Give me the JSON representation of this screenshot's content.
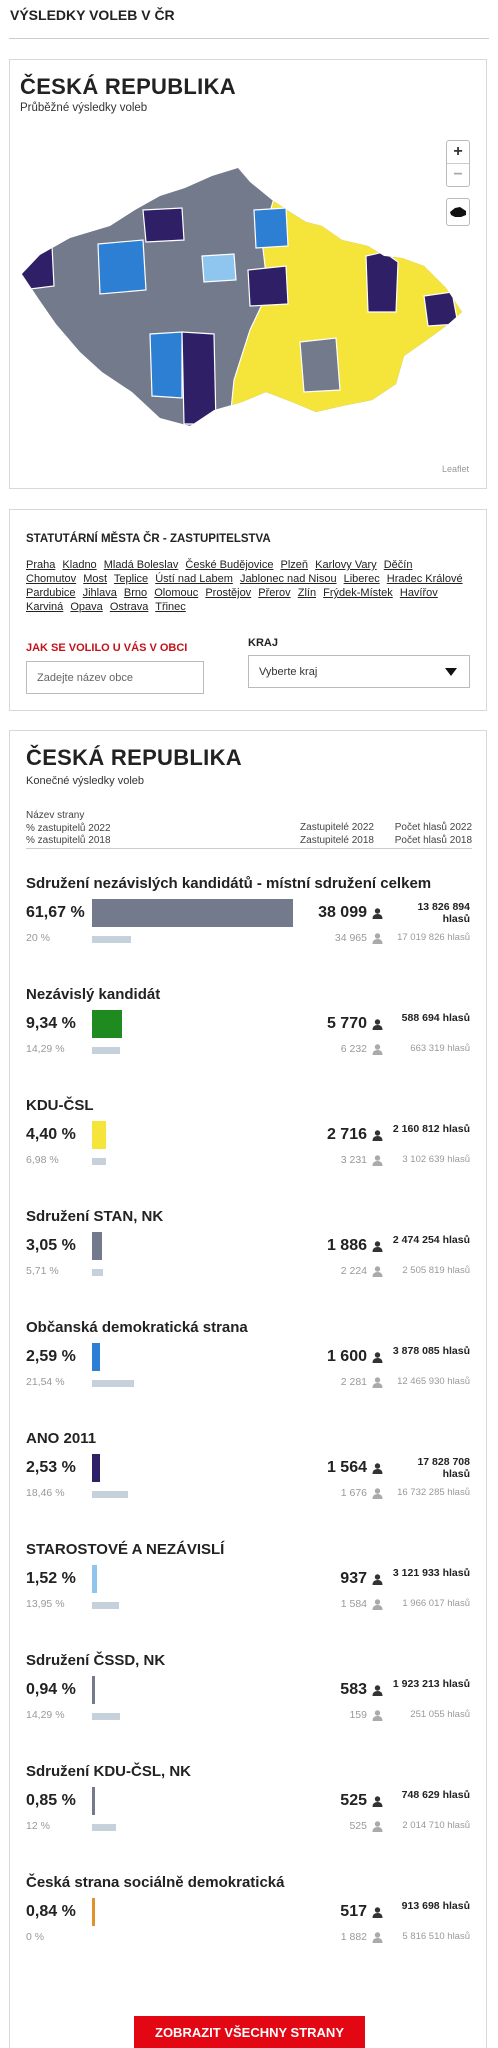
{
  "header": {
    "title": "VÝSLEDKY VOLEB V ČR"
  },
  "map_panel": {
    "title": "ČESKÁ REPUBLIKA",
    "subtitle": "Průběžné výsledky voleb",
    "zoom_in": "+",
    "zoom_out": "−",
    "attribution": "Leaflet"
  },
  "cities": {
    "title": "STATUTÁRNÍ MĚSTA ČR - ZASTUPITELSTVA",
    "links": [
      "Praha",
      "Kladno",
      "Mladá Boleslav",
      "České Budějovice",
      "Plzeň",
      "Karlovy Vary",
      "Děčín",
      "Chomutov",
      "Most",
      "Teplice",
      "Ústí nad Labem",
      "Jablonec nad Nisou",
      "Liberec",
      "Hradec Králové",
      "Pardubice",
      "Jihlava",
      "Brno",
      "Olomouc",
      "Prostějov",
      "Přerov",
      "Zlín",
      "Frýdek-Místek",
      "Havířov",
      "Karviná",
      "Opava",
      "Ostrava",
      "Třinec"
    ]
  },
  "search": {
    "label": "JAK SE VOLILO U VÁS V OBCI",
    "placeholder": "Zadejte název obce"
  },
  "region": {
    "label": "KRAJ",
    "placeholder": "Vyberte kraj"
  },
  "results": {
    "title": "ČESKÁ REPUBLIKA",
    "subtitle": "Konečné výsledky voleb",
    "columns": {
      "name": "Název strany",
      "pct_2022": "% zastupitelů 2022",
      "pct_2018": "% zastupitelů 2018",
      "seats_2022": "Zastupitelé 2022",
      "seats_2018": "Zastupitelé 2018",
      "votes_2022": "Počet hlasů 2022",
      "votes_2018": "Počet hlasů 2018"
    },
    "votes_unit": "hlasů",
    "parties": [
      {
        "name": "Sdružení nezávislých kandidátů - místní sdružení celkem",
        "color": "#737a8c",
        "pct_2022": {
          "value": 61.67,
          "label": "61,67 %"
        },
        "seats_2022": "38 099",
        "votes_2022": "13 826 894",
        "pct_2018": {
          "value": 20,
          "label": "20 %"
        },
        "seats_2018": "34 965",
        "votes_2018": "17 019 826"
      },
      {
        "name": "Nezávislý kandidát",
        "color": "#1f8a1f",
        "pct_2022": {
          "value": 9.34,
          "label": "9,34 %"
        },
        "seats_2022": "5 770",
        "votes_2022": "588 694",
        "pct_2018": {
          "value": 14.29,
          "label": "14,29 %"
        },
        "seats_2018": "6 232",
        "votes_2018": "663 319"
      },
      {
        "name": "KDU-ČSL",
        "color": "#f5e43a",
        "pct_2022": {
          "value": 4.4,
          "label": "4,40 %"
        },
        "seats_2022": "2 716",
        "votes_2022": "2 160 812",
        "pct_2018": {
          "value": 6.98,
          "label": "6,98 %"
        },
        "seats_2018": "3 231",
        "votes_2018": "3 102 639"
      },
      {
        "name": "Sdružení STAN, NK",
        "color": "#737a8c",
        "pct_2022": {
          "value": 3.05,
          "label": "3,05 %"
        },
        "seats_2022": "1 886",
        "votes_2022": "2 474 254",
        "pct_2018": {
          "value": 5.71,
          "label": "5,71 %"
        },
        "seats_2018": "2 224",
        "votes_2018": "2 505 819"
      },
      {
        "name": "Občanská demokratická strana",
        "color": "#2d7fd3",
        "pct_2022": {
          "value": 2.59,
          "label": "2,59 %"
        },
        "seats_2022": "1 600",
        "votes_2022": "3 878 085",
        "pct_2018": {
          "value": 21.54,
          "label": "21,54 %"
        },
        "seats_2018": "2 281",
        "votes_2018": "12 465 930"
      },
      {
        "name": "ANO 2011",
        "color": "#2e1f66",
        "pct_2022": {
          "value": 2.53,
          "label": "2,53 %"
        },
        "seats_2022": "1 564",
        "votes_2022": "17 828 708",
        "pct_2018": {
          "value": 18.46,
          "label": "18,46 %"
        },
        "seats_2018": "1 676",
        "votes_2018": "16 732 285"
      },
      {
        "name": "STAROSTOVÉ A NEZÁVISLÍ",
        "color": "#8ec6f0",
        "pct_2022": {
          "value": 1.52,
          "label": "1,52 %"
        },
        "seats_2022": "937",
        "votes_2022": "3 121 933",
        "pct_2018": {
          "value": 13.95,
          "label": "13,95 %"
        },
        "seats_2018": "1 584",
        "votes_2018": "1 966 017"
      },
      {
        "name": "Sdružení ČSSD, NK",
        "color": "#737a8c",
        "pct_2022": {
          "value": 0.94,
          "label": "0,94 %"
        },
        "seats_2022": "583",
        "votes_2022": "1 923 213",
        "pct_2018": {
          "value": 14.29,
          "label": "14,29 %"
        },
        "seats_2018": "159",
        "votes_2018": "251 055"
      },
      {
        "name": "Sdružení KDU-ČSL, NK",
        "color": "#737a8c",
        "pct_2022": {
          "value": 0.85,
          "label": "0,85 %"
        },
        "seats_2022": "525",
        "votes_2022": "748 629",
        "pct_2018": {
          "value": 12,
          "label": "12 %"
        },
        "seats_2018": "525",
        "votes_2018": "2 014 710"
      },
      {
        "name": "Česká strana sociálně demokratická",
        "color": "#e0932c",
        "pct_2022": {
          "value": 0.84,
          "label": "0,84 %"
        },
        "seats_2022": "517",
        "votes_2022": "913 698",
        "pct_2018": {
          "value": 0,
          "label": "0 %"
        },
        "seats_2018": "1 882",
        "votes_2018": "5 816 510"
      }
    ]
  },
  "button": "ZOBRAZIT VŠECHNY STRANY"
}
